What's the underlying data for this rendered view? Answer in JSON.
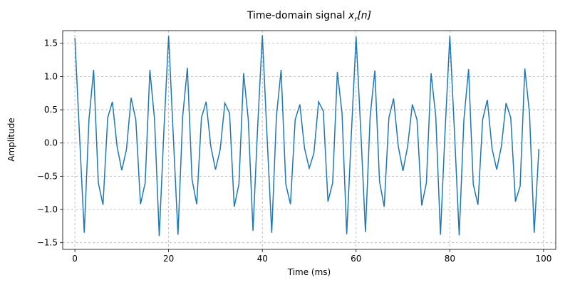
{
  "chart_data": {
    "type": "line",
    "title_text": "Time-domain signal",
    "title_symbol": "x",
    "title_subscript": "r",
    "title_argument": "[n]",
    "xlabel": "Time (ms)",
    "ylabel": "Amplitude",
    "x": [
      0,
      1,
      2,
      3,
      4,
      5,
      6,
      7,
      8,
      9,
      10,
      11,
      12,
      13,
      14,
      15,
      16,
      17,
      18,
      19,
      20,
      21,
      22,
      23,
      24,
      25,
      26,
      27,
      28,
      29,
      30,
      31,
      32,
      33,
      34,
      35,
      36,
      37,
      38,
      39,
      40,
      41,
      42,
      43,
      44,
      45,
      46,
      47,
      48,
      49,
      50,
      51,
      52,
      53,
      54,
      55,
      56,
      57,
      58,
      59,
      60,
      61,
      62,
      63,
      64,
      65,
      66,
      67,
      68,
      69,
      70,
      71,
      72,
      73,
      74,
      75,
      76,
      77,
      78,
      79,
      80,
      81,
      82,
      83,
      84,
      85,
      86,
      87,
      88,
      89,
      90,
      91,
      92,
      93,
      94,
      95,
      96,
      97,
      98,
      99
    ],
    "series": [
      {
        "color": "#1f77b4",
        "values": [
          1.58,
          0.1,
          -1.35,
          0.35,
          1.1,
          -0.6,
          -0.93,
          0.38,
          0.62,
          -0.05,
          -0.41,
          -0.1,
          0.68,
          0.35,
          -0.92,
          -0.6,
          1.1,
          0.35,
          -1.4,
          0.2,
          1.61,
          0.1,
          -1.38,
          0.4,
          1.13,
          -0.55,
          -0.92,
          0.38,
          0.62,
          -0.05,
          -0.4,
          -0.1,
          0.6,
          0.45,
          -0.96,
          -0.62,
          1.05,
          0.35,
          -1.32,
          0.25,
          1.62,
          0.1,
          -1.35,
          0.4,
          1.1,
          -0.62,
          -0.92,
          0.35,
          0.58,
          -0.08,
          -0.38,
          -0.15,
          0.62,
          0.48,
          -0.88,
          -0.6,
          1.07,
          0.45,
          -1.37,
          0.15,
          1.6,
          0.18,
          -1.34,
          0.4,
          1.09,
          -0.58,
          -0.96,
          0.38,
          0.67,
          -0.05,
          -0.42,
          -0.05,
          0.58,
          0.35,
          -0.94,
          -0.6,
          1.05,
          0.4,
          -1.38,
          0.2,
          1.61,
          0.15,
          -1.39,
          0.35,
          1.11,
          -0.62,
          -0.93,
          0.35,
          0.65,
          -0.08,
          -0.4,
          -0.05,
          0.6,
          0.38,
          -0.88,
          -0.65,
          1.12,
          0.45,
          -1.35,
          -0.09
        ]
      }
    ],
    "xlim": [
      -2.6,
      102.6
    ],
    "ylim": [
      -1.6,
      1.69
    ],
    "xticks": [
      0,
      20,
      40,
      60,
      80,
      100
    ],
    "yticks": [
      {
        "value": -1.5,
        "label": "−1.5"
      },
      {
        "value": -1.0,
        "label": "−1.0"
      },
      {
        "value": -0.5,
        "label": "−0.5"
      },
      {
        "value": 0,
        "label": "0.0"
      },
      {
        "value": 0.5,
        "label": "0.5"
      },
      {
        "value": 1.0,
        "label": "1.0"
      },
      {
        "value": 1.5,
        "label": "1.5"
      }
    ],
    "grid": true
  }
}
